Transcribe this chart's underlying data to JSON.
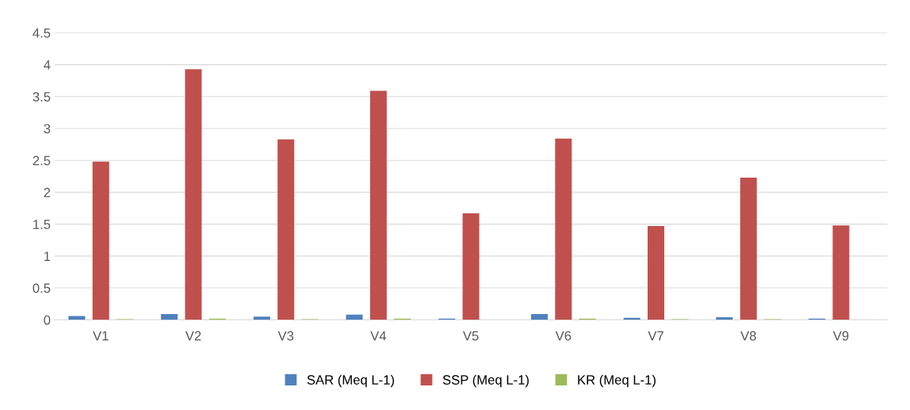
{
  "chart_data": {
    "type": "bar",
    "categories": [
      "V1",
      "V2",
      "V3",
      "V4",
      "V5",
      "V6",
      "V7",
      "V8",
      "V9"
    ],
    "series": [
      {
        "name": "SAR (Meq L-1)",
        "color": "#4f81bd",
        "values": [
          0.06,
          0.09,
          0.05,
          0.08,
          0.02,
          0.09,
          0.03,
          0.04,
          0.02
        ]
      },
      {
        "name": "SSP (Meq L-1)",
        "color": "#c0504d",
        "values": [
          2.48,
          3.93,
          2.83,
          3.59,
          1.67,
          2.84,
          1.47,
          2.23,
          1.48
        ]
      },
      {
        "name": "KR (Meq L-1)",
        "color": "#9bbb59",
        "values": [
          0.01,
          0.02,
          0.01,
          0.02,
          0.0,
          0.02,
          0.01,
          0.01,
          0.0
        ]
      }
    ],
    "ylim": [
      0,
      4.5
    ],
    "yticks": [
      0,
      0.5,
      1,
      1.5,
      2,
      2.5,
      3,
      3.5,
      4,
      4.5
    ],
    "grid": "y",
    "legend": "bottom"
  }
}
